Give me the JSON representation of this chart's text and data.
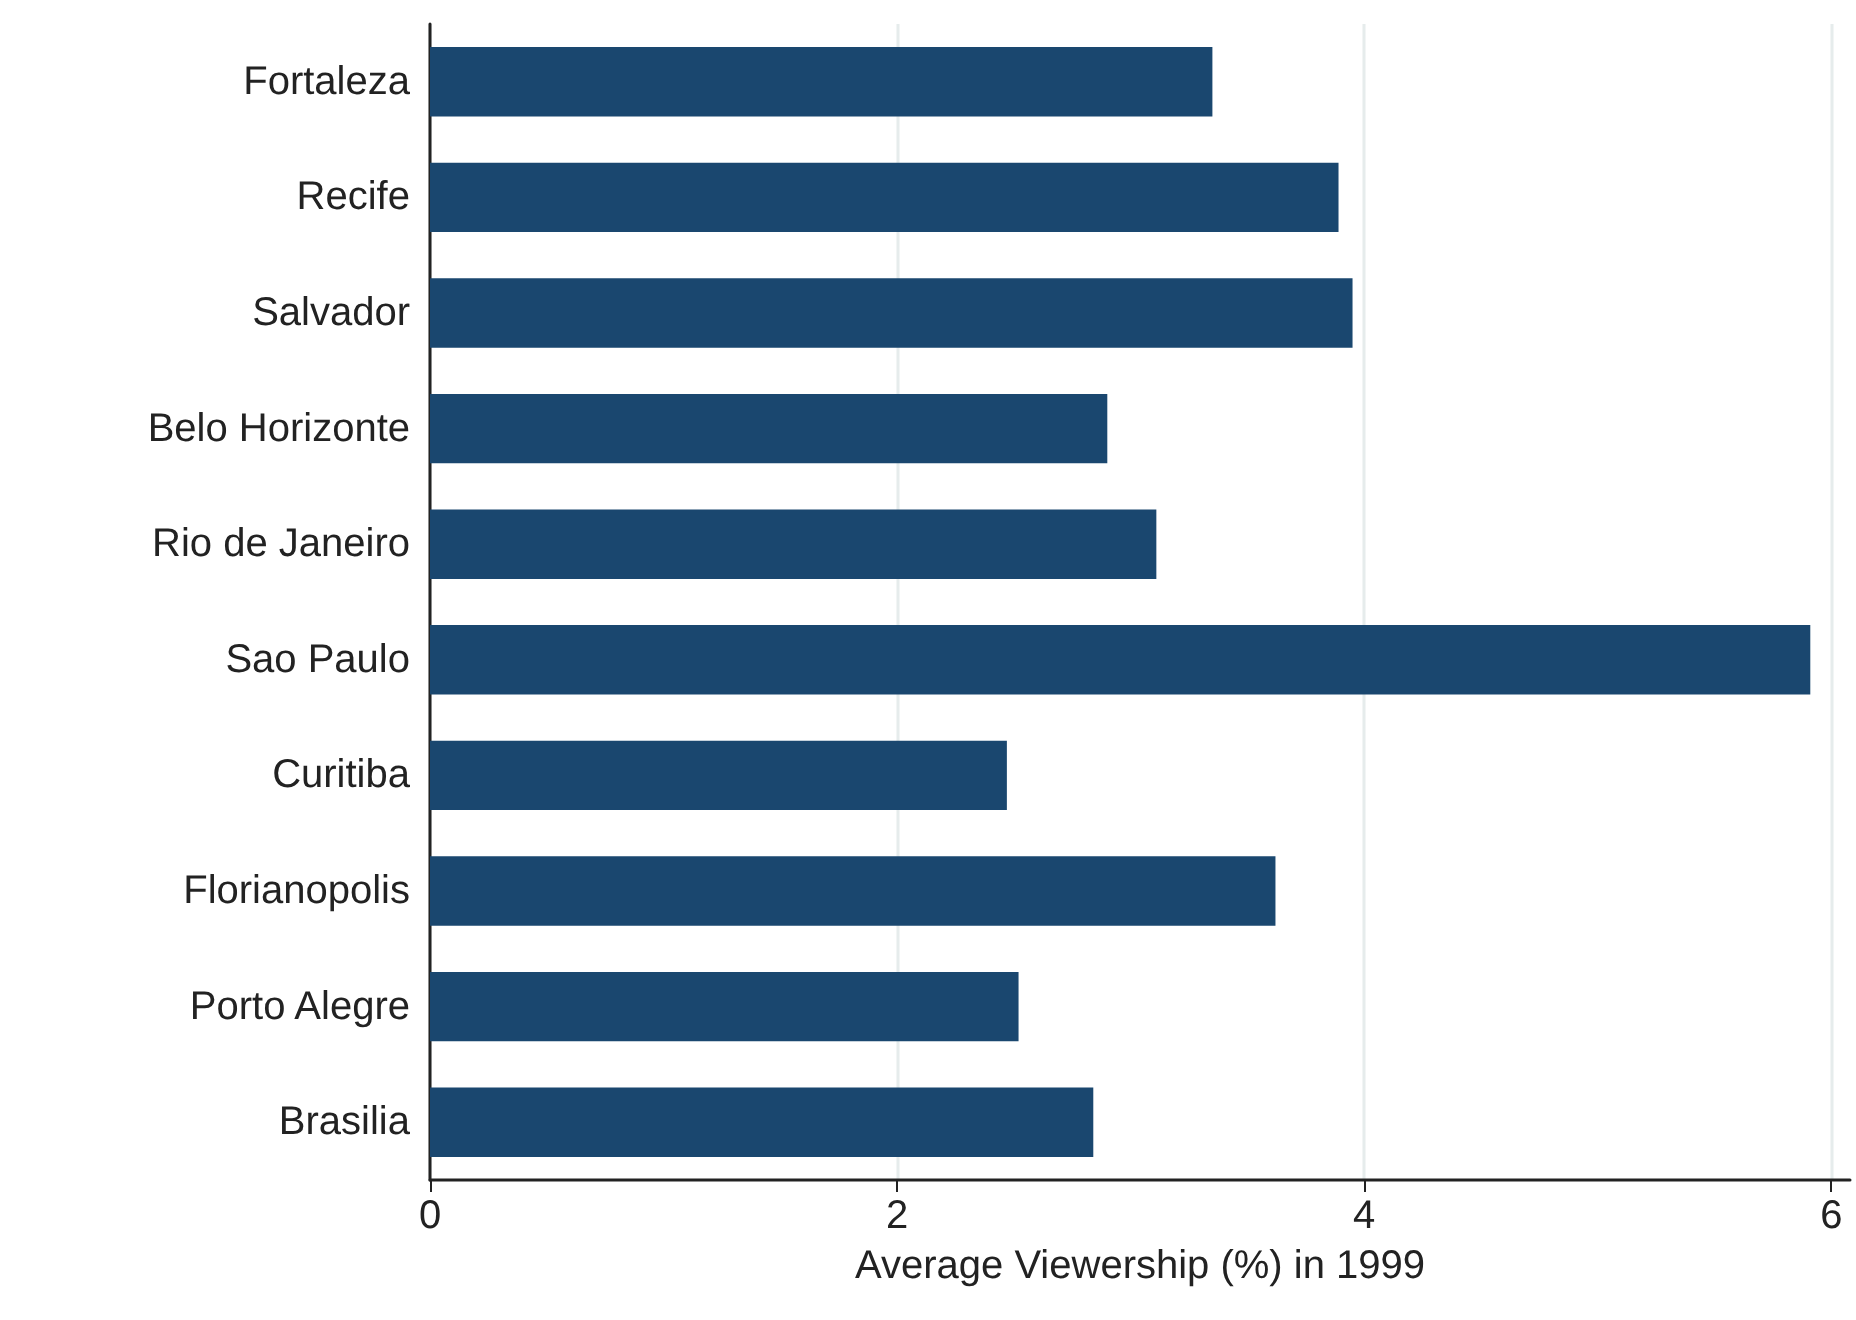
{
  "chart_data": {
    "type": "bar",
    "orientation": "horizontal",
    "xlabel": "Average Viewership (%) in 1999",
    "categories": [
      "Fortaleza",
      "Recife",
      "Salvador",
      "Belo Horizonte",
      "Rio de Janeiro",
      "Sao Paulo",
      "Curitiba",
      "Florianopolis",
      "Porto Alegre",
      "Brasilia"
    ],
    "values": [
      3.35,
      3.89,
      3.95,
      2.9,
      3.11,
      5.91,
      2.47,
      3.62,
      2.52,
      2.84
    ],
    "color": "#1a476f",
    "xlim": [
      0,
      6.08
    ],
    "xticks": [
      0,
      2,
      4,
      6
    ],
    "grid": "x"
  }
}
